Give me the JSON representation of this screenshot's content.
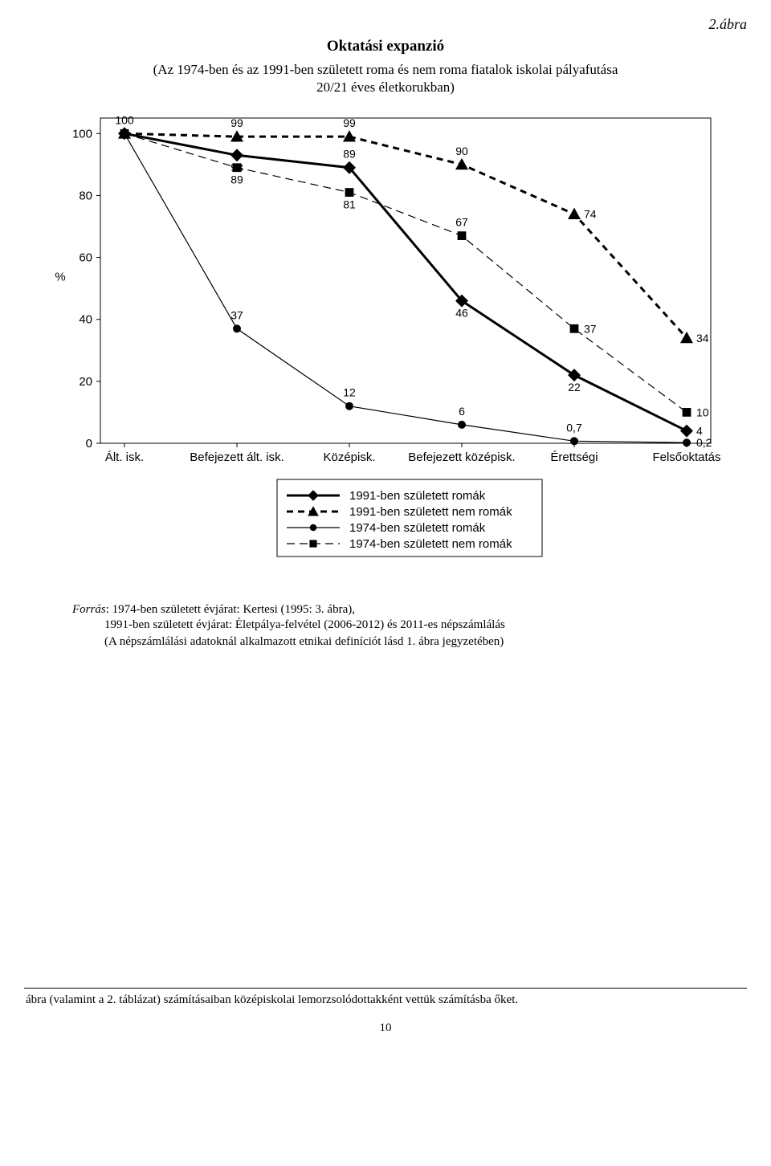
{
  "figure_number": "2.ábra",
  "title": "Oktatási expanzió",
  "subtitle_line1": "(Az 1974-ben és az 1991-ben született roma és nem roma fiatalok iskolai pályafutása",
  "subtitle_line2": "20/21 éves életkorukban)",
  "chart": {
    "type": "line",
    "background_color": "#ffffff",
    "border_color": "#000000",
    "axis_color": "#000000",
    "y_label": "%",
    "y_label_fontsize": 17,
    "ylim": [
      0,
      105
    ],
    "ytick_step": 20,
    "yticks": [
      0,
      20,
      40,
      60,
      80,
      100
    ],
    "categories": [
      "Ált. isk.",
      "Befejezett ált. isk.",
      "Középisk.",
      "Befejezett középisk.",
      "Érettségi",
      "Felsőoktatás"
    ],
    "series": [
      {
        "id": "s1",
        "name": "1991-ben született romák",
        "values": [
          100,
          93,
          89,
          46,
          22,
          4
        ],
        "marker": "diamond",
        "marker_size": 8,
        "line_width": 3,
        "dash": "none",
        "color": "#000000",
        "labels": [
          "",
          "93",
          "89",
          "46",
          "22",
          "4"
        ],
        "label_pos": [
          "",
          "below",
          "above",
          "below",
          "below",
          "right"
        ]
      },
      {
        "id": "s2",
        "name": "1991-ben született nem romák",
        "values": [
          100,
          99,
          99,
          90,
          74,
          34
        ],
        "marker": "triangle",
        "marker_size": 8,
        "line_width": 3,
        "dash": "8,6",
        "color": "#000000",
        "labels": [
          "",
          "99",
          "99",
          "90",
          "74",
          "34"
        ],
        "label_pos": [
          "",
          "above",
          "above",
          "above",
          "right",
          "right"
        ]
      },
      {
        "id": "s3",
        "name": "1974-ben született romák",
        "values": [
          100,
          37,
          12,
          6,
          0.7,
          0.2
        ],
        "marker": "circle",
        "marker_size": 5,
        "line_width": 1.2,
        "dash": "none",
        "color": "#000000",
        "labels": [
          "",
          "37",
          "12",
          "6",
          "0,7",
          "0,2"
        ],
        "label_pos": [
          "",
          "above",
          "above",
          "above",
          "above",
          "right"
        ]
      },
      {
        "id": "s4",
        "name": "1974-ben született nem romák",
        "values": [
          100,
          89,
          81,
          67,
          37,
          10
        ],
        "marker": "square",
        "marker_size": 7,
        "line_width": 1.2,
        "dash": "10,6",
        "color": "#000000",
        "labels": [
          "100",
          "89",
          "81",
          "67",
          "37",
          "10"
        ],
        "label_pos": [
          "above",
          "below",
          "below",
          "above",
          "right",
          "right"
        ]
      }
    ],
    "legend_items": [
      {
        "series": "s1"
      },
      {
        "series": "s2"
      },
      {
        "series": "s3"
      },
      {
        "series": "s4"
      }
    ]
  },
  "source_label": "Forrás",
  "source_line1": ": 1974-ben született évjárat: Kertesi (1995: 3. ábra),",
  "source_line2": "1991-ben született évjárat: Életpálya-felvétel (2006-2012) és 2011-es népszámlálás",
  "source_line3": "(A népszámlálási adatoknál alkalmazott etnikai definíciót lásd 1. ábra jegyzetében)",
  "footnote": "ábra (valamint a 2. táblázat) számításaiban középiskolai lemorzsolódottakként vettük számításba őket.",
  "page_number": "10"
}
